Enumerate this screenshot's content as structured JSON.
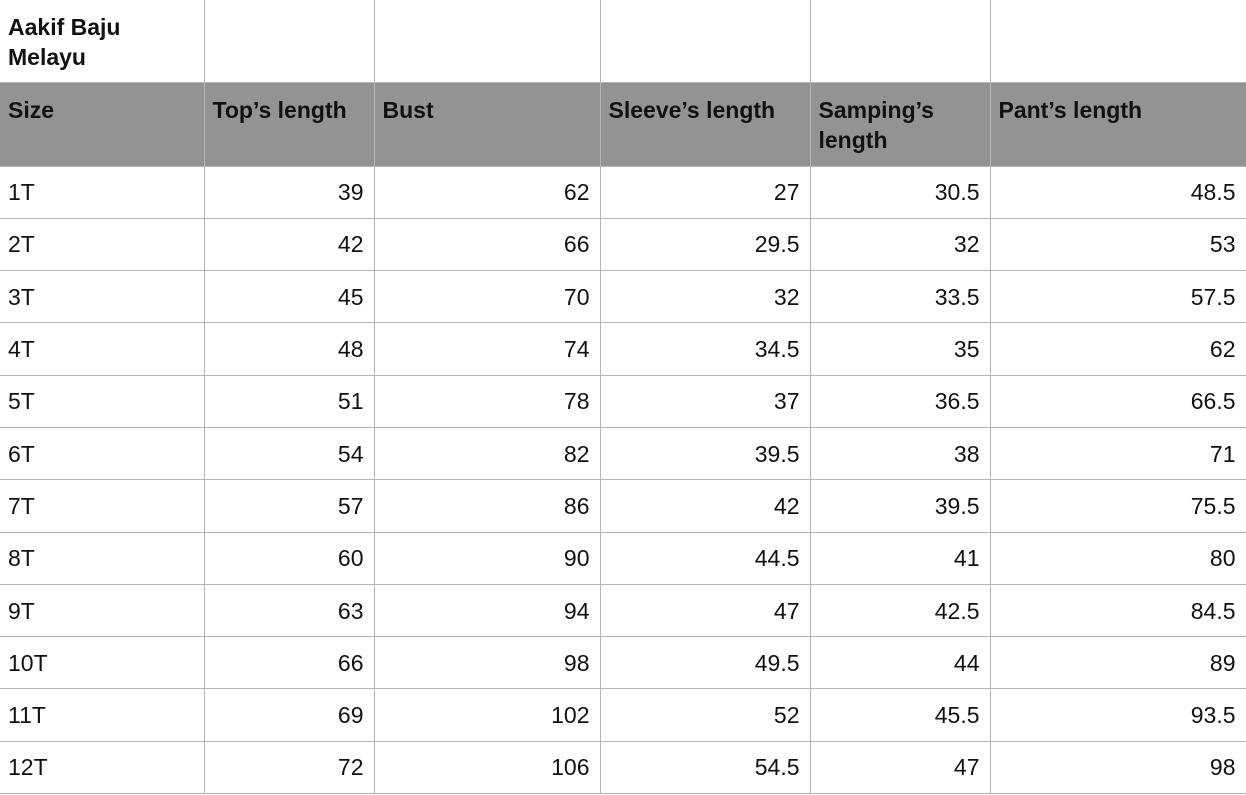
{
  "title": "Aakif Baju Melayu",
  "colors": {
    "header_bg": "#939393",
    "grid": "#b5b5b5"
  },
  "columns": [
    "Size",
    "Top’s length",
    "Bust",
    "Sleeve’s length",
    "Samping’s length",
    "Pant’s length"
  ],
  "rows": [
    [
      "1T",
      "39",
      "62",
      "27",
      "30.5",
      "48.5"
    ],
    [
      "2T",
      "42",
      "66",
      "29.5",
      "32",
      "53"
    ],
    [
      "3T",
      "45",
      "70",
      "32",
      "33.5",
      "57.5"
    ],
    [
      "4T",
      "48",
      "74",
      "34.5",
      "35",
      "62"
    ],
    [
      "5T",
      "51",
      "78",
      "37",
      "36.5",
      "66.5"
    ],
    [
      "6T",
      "54",
      "82",
      "39.5",
      "38",
      "71"
    ],
    [
      "7T",
      "57",
      "86",
      "42",
      "39.5",
      "75.5"
    ],
    [
      "8T",
      "60",
      "90",
      "44.5",
      "41",
      "80"
    ],
    [
      "9T",
      "63",
      "94",
      "47",
      "42.5",
      "84.5"
    ],
    [
      "10T",
      "66",
      "98",
      "49.5",
      "44",
      "89"
    ],
    [
      "11T",
      "69",
      "102",
      "52",
      "45.5",
      "93.5"
    ],
    [
      "12T",
      "72",
      "106",
      "54.5",
      "47",
      "98"
    ]
  ]
}
